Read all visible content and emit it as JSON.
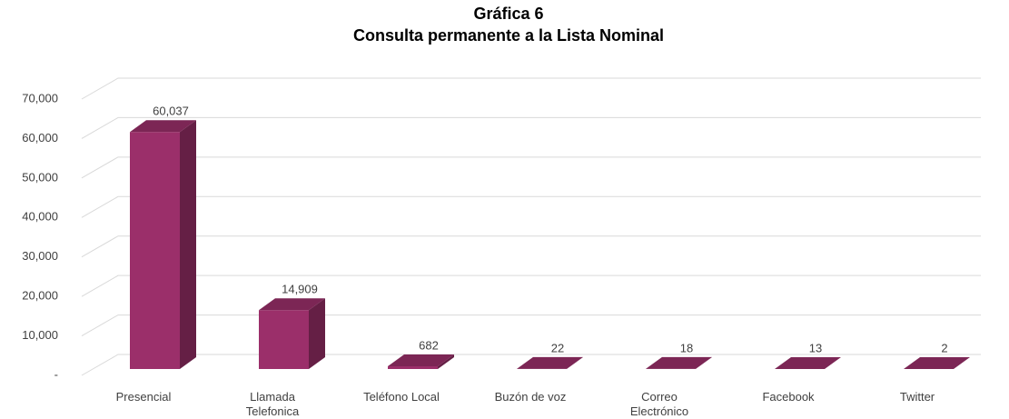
{
  "chart_data": {
    "type": "bar3d",
    "title": "Gráfica 6",
    "subtitle": "Consulta permanente a la Lista Nominal",
    "categories": [
      "Presencial",
      "Llamada Telefonica",
      "Teléfono Local",
      "Buzón de voz",
      "Correo Electrónico",
      "Facebook",
      "Twitter"
    ],
    "values": [
      60037,
      14909,
      682,
      22,
      18,
      13,
      2
    ],
    "value_labels": [
      "60,037",
      "14,909",
      "682",
      "22",
      "18",
      "13",
      "2"
    ],
    "color": "#9b2f6a",
    "ylim": [
      0,
      70000
    ],
    "yticks": [
      {
        "value": 0,
        "label": "-"
      },
      {
        "value": 10000,
        "label": "10,000"
      },
      {
        "value": 20000,
        "label": "20,000"
      },
      {
        "value": 30000,
        "label": "30,000"
      },
      {
        "value": 40000,
        "label": "40,000"
      },
      {
        "value": 50000,
        "label": "50,000"
      },
      {
        "value": 60000,
        "label": "60,000"
      },
      {
        "value": 70000,
        "label": "70,000"
      }
    ],
    "grid": true
  }
}
